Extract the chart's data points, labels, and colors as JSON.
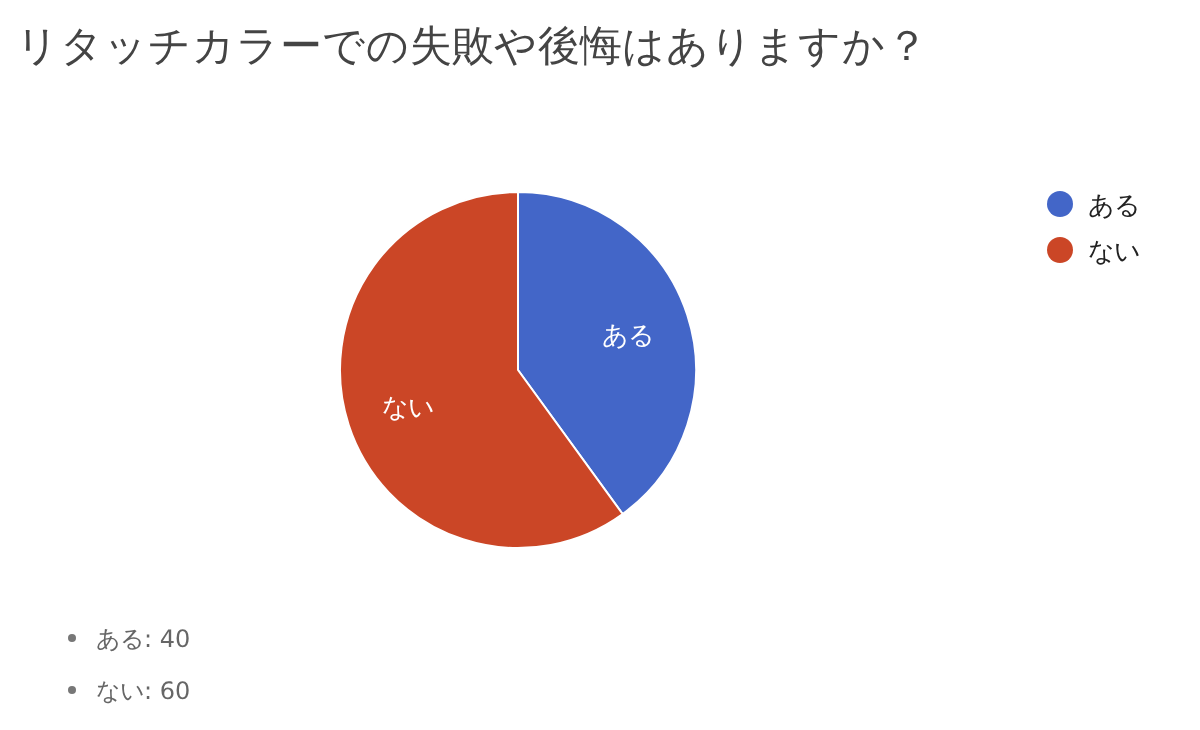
{
  "chart_data": {
    "type": "pie",
    "title": "リタッチカラーでの失敗や後悔はありますか？",
    "categories": [
      "ある",
      "ない"
    ],
    "values": [
      40,
      60
    ],
    "colors": [
      "#4366c8",
      "#cb4626"
    ],
    "legend": "top right",
    "annotations": [
      "ある: 40",
      "ない: 60"
    ]
  }
}
